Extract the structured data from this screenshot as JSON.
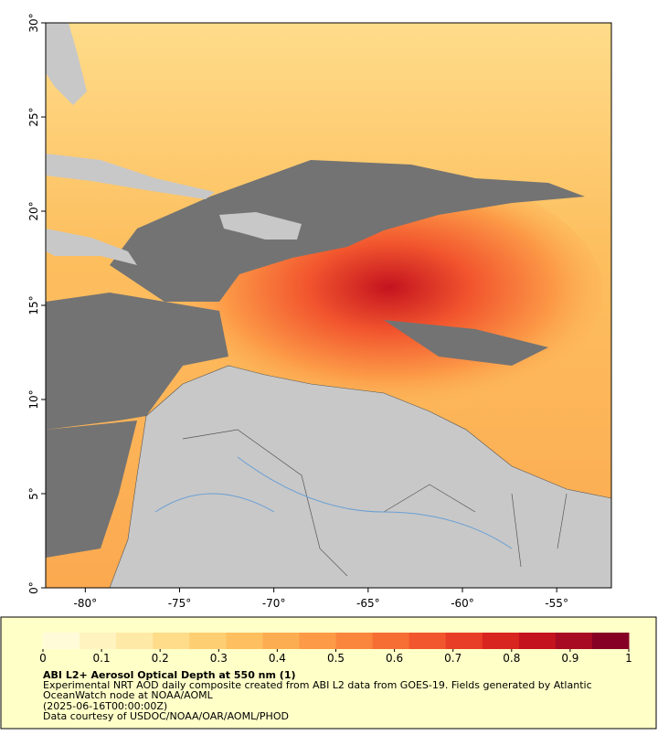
{
  "map": {
    "lon_range": [
      -82.1,
      -52.1
    ],
    "lat_range": [
      0,
      30
    ],
    "lon_ticks": [
      {
        "value": -80,
        "label": "-80°"
      },
      {
        "value": -75,
        "label": "-75°"
      },
      {
        "value": -70,
        "label": "-70°"
      },
      {
        "value": -65,
        "label": "-65°"
      },
      {
        "value": -60,
        "label": "-60°"
      },
      {
        "value": -55,
        "label": "-55°"
      }
    ],
    "lat_ticks": [
      {
        "value": 0,
        "label": "0°"
      },
      {
        "value": 5,
        "label": "5°"
      },
      {
        "value": 10,
        "label": "10°"
      },
      {
        "value": 15,
        "label": "15°"
      },
      {
        "value": 20,
        "label": "20°"
      },
      {
        "value": 25,
        "label": "25°"
      },
      {
        "value": 30,
        "label": "30°"
      }
    ]
  },
  "colorbar": {
    "range": [
      0,
      1
    ],
    "ticks": [
      0,
      0.1,
      0.2,
      0.3,
      0.4,
      0.5,
      0.6,
      0.7,
      0.8,
      0.9,
      1
    ],
    "colors": [
      "#fffbd9",
      "#fff3c0",
      "#ffe9a6",
      "#ffdc8a",
      "#fecf72",
      "#fdbf5f",
      "#fdad51",
      "#fc9a47",
      "#fa853d",
      "#f76e35",
      "#f2562e",
      "#e83d26",
      "#d9251f",
      "#c4131f",
      "#a80923",
      "#850024"
    ]
  },
  "caption": {
    "title": "ABI L2+ Aerosol Optical Depth at 550 nm (1)",
    "lines": [
      "Experimental NRT AOD daily composite created from ABI L2 data from GOES-19. Fields generated by Atlantic",
      "OceanWatch node at NOAA/AOML",
      "(2025-06-16T00:00:00Z)",
      "Data courtesy of USDOC/NOAA/OAR/AOML/PHOD"
    ]
  }
}
